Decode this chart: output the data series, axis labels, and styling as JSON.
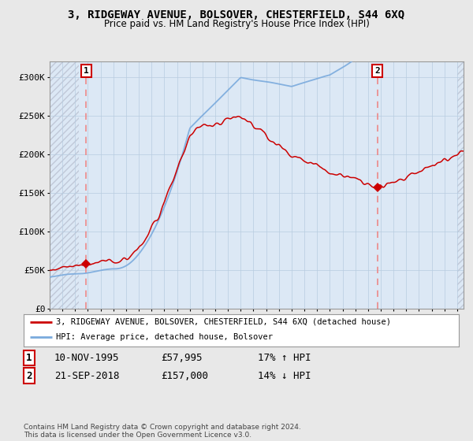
{
  "title": "3, RIDGEWAY AVENUE, BOLSOVER, CHESTERFIELD, S44 6XQ",
  "subtitle": "Price paid vs. HM Land Registry's House Price Index (HPI)",
  "ylim": [
    0,
    320000
  ],
  "yticks": [
    0,
    50000,
    100000,
    150000,
    200000,
    250000,
    300000
  ],
  "ytick_labels": [
    "£0",
    "£50K",
    "£100K",
    "£150K",
    "£200K",
    "£250K",
    "£300K"
  ],
  "fig_bg_color": "#e8e8e8",
  "plot_bg_color": "#dce8f5",
  "hatch_color": "#c0c8d8",
  "sale1_date": 1995.87,
  "sale1_price": 57995,
  "sale2_date": 2018.73,
  "sale2_price": 157000,
  "legend_line1": "3, RIDGEWAY AVENUE, BOLSOVER, CHESTERFIELD, S44 6XQ (detached house)",
  "legend_line2": "HPI: Average price, detached house, Bolsover",
  "table_row1": [
    "1",
    "10-NOV-1995",
    "£57,995",
    "17% ↑ HPI"
  ],
  "table_row2": [
    "2",
    "21-SEP-2018",
    "£157,000",
    "14% ↓ HPI"
  ],
  "footer": "Contains HM Land Registry data © Crown copyright and database right 2024.\nThis data is licensed under the Open Government Licence v3.0.",
  "red_color": "#cc0000",
  "blue_color": "#7aaadd",
  "dashed_red": "#ee8888",
  "xmin": 1993,
  "xmax": 2025.5
}
